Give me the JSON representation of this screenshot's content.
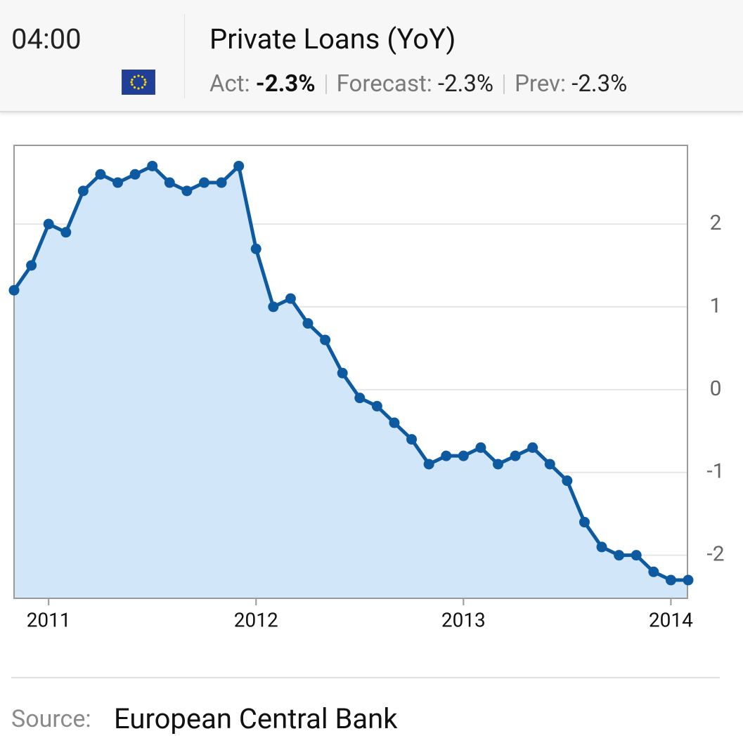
{
  "header": {
    "time": "04:00",
    "title": "Private Loans (YoY)",
    "act_label": "Act:",
    "act": "-2.3%",
    "forecast_label": "Forecast:",
    "forecast": "-2.3%",
    "prev_label": "Prev:",
    "prev": "-2.3%"
  },
  "chart_data": {
    "type": "line",
    "categories": [
      null,
      null,
      "2011",
      null,
      null,
      null,
      null,
      null,
      null,
      null,
      null,
      null,
      null,
      null,
      "2012",
      null,
      null,
      null,
      null,
      null,
      null,
      null,
      null,
      null,
      null,
      null,
      "2013",
      null,
      null,
      null,
      null,
      null,
      null,
      null,
      null,
      null,
      null,
      null,
      "2014",
      null
    ],
    "values": [
      1.2,
      1.5,
      2.0,
      1.9,
      2.4,
      2.6,
      2.5,
      2.6,
      2.7,
      2.5,
      2.4,
      2.5,
      2.5,
      2.7,
      1.7,
      1.0,
      1.1,
      0.8,
      0.6,
      0.2,
      -0.1,
      -0.2,
      -0.4,
      -0.6,
      -0.9,
      -0.8,
      -0.8,
      -0.7,
      -0.9,
      -0.8,
      -0.7,
      -0.9,
      -1.1,
      -1.6,
      -1.9,
      -2.0,
      -2.0,
      -2.2,
      -2.3,
      -2.3
    ],
    "color": "#0e5aa0",
    "area_color": "#d2e6fa",
    "area": true,
    "ylim": [
      -2.52,
      2.95
    ],
    "yticks": [
      -2,
      -1,
      0,
      1,
      2
    ],
    "grid": true
  },
  "source": {
    "label": "Source:",
    "value": "European Central Bank"
  }
}
